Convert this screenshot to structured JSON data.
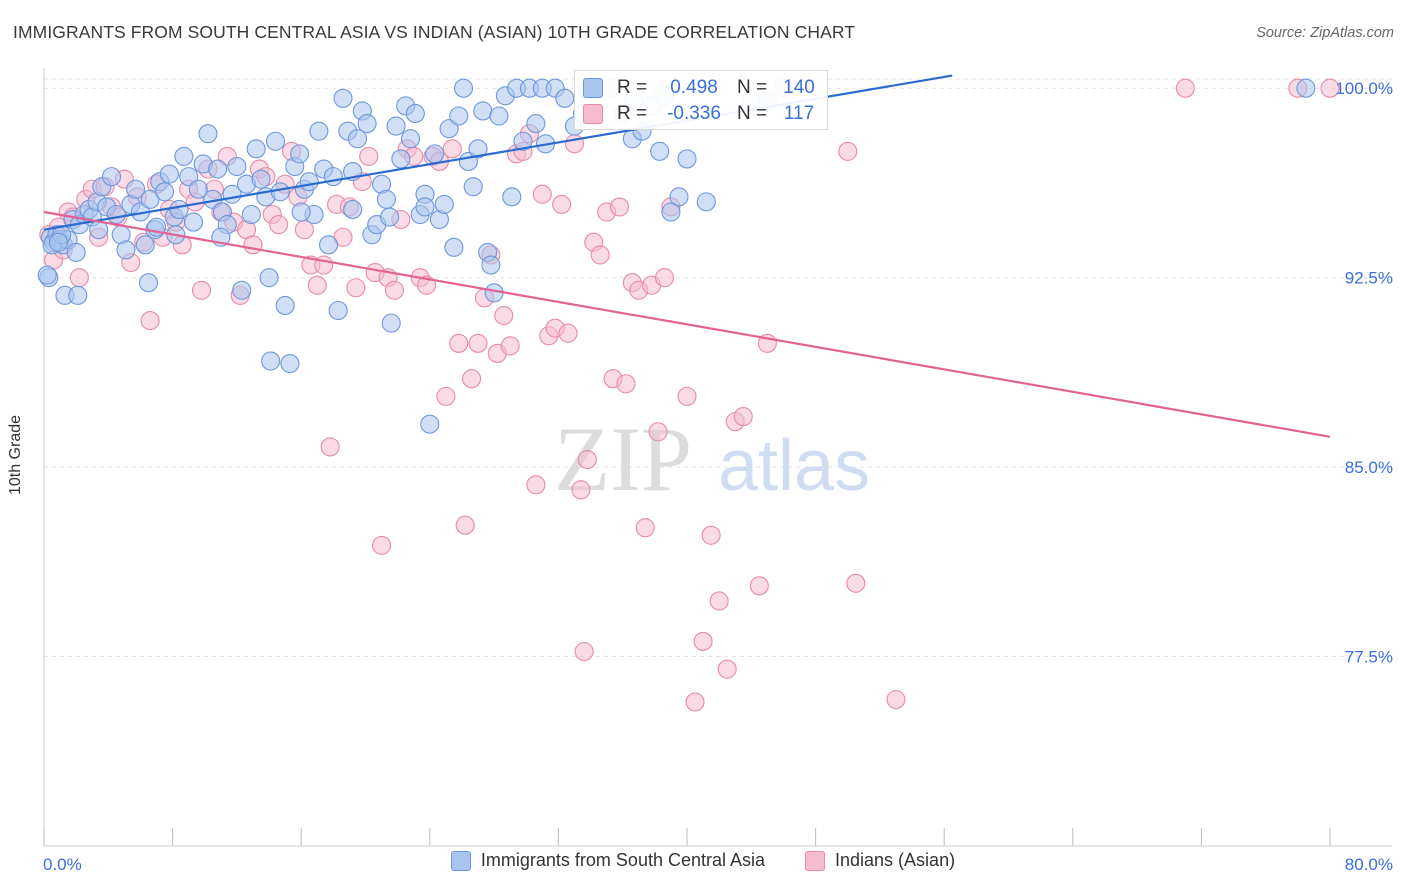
{
  "title": "IMMIGRANTS FROM SOUTH CENTRAL ASIA VS INDIAN (ASIAN) 10TH GRADE CORRELATION CHART",
  "source": "Source: ZipAtlas.com",
  "watermark": {
    "zip": "ZIP",
    "atlas": "atlas"
  },
  "colors": {
    "blue_fill": "#a9c4ee",
    "blue_stroke": "#6d97dc",
    "blue_line": "#2a6bd0",
    "pink_fill": "#f5bcd0",
    "pink_stroke": "#e78aaa",
    "pink_line": "#e26393",
    "axis_label": "#3a6fd8",
    "grid": "#e2e2e2"
  },
  "stats": {
    "series_a": {
      "r_label": "R =",
      "r_value": "0.498",
      "n_label": "N =",
      "n_value": "140"
    },
    "series_b": {
      "r_label": "R =",
      "r_value": "-0.336",
      "n_label": "N =",
      "n_value": "117"
    }
  },
  "chart_data": {
    "type": "scatter",
    "title": "IMMIGRANTS FROM SOUTH CENTRAL ASIA VS INDIAN (ASIAN) 10TH GRADE CORRELATION CHART",
    "xlabel": "",
    "ylabel": "10th Grade",
    "xlim": [
      0,
      80
    ],
    "ylim": [
      70,
      100.8
    ],
    "x_tick_labels": [
      "0.0%",
      "80.0%"
    ],
    "y_ticks": [
      100.0,
      92.5,
      85.0,
      77.5
    ],
    "y_tick_labels": [
      "100.0%",
      "92.5%",
      "85.0%",
      "77.5%"
    ],
    "grid": true,
    "legend_position": "bottom",
    "series": [
      {
        "name": "Immigrants from South Central Asia",
        "color": "#a9c4ee",
        "trend": {
          "x": [
            0,
            56.5
          ],
          "y": [
            94.4,
            100.5
          ]
        },
        "points": [
          [
            0.4,
            94.1
          ],
          [
            0.6,
            93.9
          ],
          [
            0.8,
            94.2
          ],
          [
            1.0,
            94.0
          ],
          [
            1.2,
            93.8
          ],
          [
            1.5,
            94.0
          ],
          [
            1.8,
            94.8
          ],
          [
            2.0,
            93.5
          ],
          [
            2.2,
            94.6
          ],
          [
            2.5,
            95.0
          ],
          [
            2.8,
            95.2
          ],
          [
            3.0,
            94.9
          ],
          [
            3.3,
            95.5
          ],
          [
            3.6,
            96.1
          ],
          [
            3.9,
            95.3
          ],
          [
            4.2,
            96.5
          ],
          [
            4.5,
            95.0
          ],
          [
            4.8,
            94.2
          ],
          [
            5.1,
            93.6
          ],
          [
            5.4,
            95.4
          ],
          [
            5.7,
            96.0
          ],
          [
            6.0,
            95.1
          ],
          [
            6.3,
            93.8
          ],
          [
            6.6,
            95.6
          ],
          [
            6.9,
            94.4
          ],
          [
            7.2,
            96.3
          ],
          [
            7.5,
            95.9
          ],
          [
            7.8,
            96.6
          ],
          [
            8.1,
            94.9
          ],
          [
            8.4,
            95.2
          ],
          [
            8.7,
            97.3
          ],
          [
            9.0,
            96.5
          ],
          [
            9.3,
            94.7
          ],
          [
            9.6,
            96.0
          ],
          [
            9.9,
            97.0
          ],
          [
            10.2,
            98.2
          ],
          [
            10.5,
            95.6
          ],
          [
            10.8,
            96.8
          ],
          [
            11.1,
            95.1
          ],
          [
            11.4,
            94.6
          ],
          [
            11.7,
            95.8
          ],
          [
            12.0,
            96.9
          ],
          [
            12.3,
            92.0
          ],
          [
            12.6,
            96.2
          ],
          [
            12.9,
            95.0
          ],
          [
            13.2,
            97.6
          ],
          [
            13.5,
            96.4
          ],
          [
            13.8,
            95.7
          ],
          [
            14.1,
            89.2
          ],
          [
            14.4,
            97.9
          ],
          [
            14.7,
            95.9
          ],
          [
            15.0,
            91.4
          ],
          [
            15.3,
            89.1
          ],
          [
            15.6,
            96.9
          ],
          [
            15.9,
            97.4
          ],
          [
            16.2,
            96.0
          ],
          [
            16.5,
            96.3
          ],
          [
            16.8,
            95.0
          ],
          [
            17.1,
            98.3
          ],
          [
            17.4,
            96.8
          ],
          [
            17.7,
            93.8
          ],
          [
            18.0,
            96.5
          ],
          [
            18.3,
            91.2
          ],
          [
            18.6,
            99.6
          ],
          [
            18.9,
            98.3
          ],
          [
            19.2,
            96.7
          ],
          [
            19.5,
            98.0
          ],
          [
            19.8,
            99.1
          ],
          [
            20.1,
            98.6
          ],
          [
            20.4,
            94.2
          ],
          [
            20.7,
            94.6
          ],
          [
            21.0,
            96.2
          ],
          [
            21.3,
            95.6
          ],
          [
            21.6,
            90.7
          ],
          [
            21.9,
            98.5
          ],
          [
            22.2,
            97.2
          ],
          [
            22.5,
            99.3
          ],
          [
            22.8,
            98.0
          ],
          [
            23.1,
            99.0
          ],
          [
            23.4,
            95.0
          ],
          [
            23.7,
            95.8
          ],
          [
            24.0,
            86.7
          ],
          [
            24.3,
            97.4
          ],
          [
            24.6,
            94.8
          ],
          [
            24.9,
            95.4
          ],
          [
            25.2,
            98.4
          ],
          [
            25.5,
            93.7
          ],
          [
            25.8,
            98.9
          ],
          [
            26.1,
            100.0
          ],
          [
            26.4,
            97.1
          ],
          [
            26.7,
            96.1
          ],
          [
            27.0,
            97.6
          ],
          [
            27.3,
            99.1
          ],
          [
            27.6,
            93.5
          ],
          [
            28.0,
            91.9
          ],
          [
            28.3,
            98.9
          ],
          [
            28.7,
            99.7
          ],
          [
            29.1,
            95.7
          ],
          [
            29.4,
            100.0
          ],
          [
            29.8,
            97.9
          ],
          [
            30.2,
            100.0
          ],
          [
            30.6,
            98.6
          ],
          [
            31.0,
            100.0
          ],
          [
            31.8,
            100.0
          ],
          [
            32.4,
            99.6
          ],
          [
            33.0,
            98.5
          ],
          [
            33.8,
            99.9
          ],
          [
            34.5,
            100.0
          ],
          [
            35.2,
            100.0
          ],
          [
            36.0,
            99.0
          ],
          [
            36.6,
            98.0
          ],
          [
            37.2,
            98.3
          ],
          [
            37.8,
            99.3
          ],
          [
            38.3,
            97.5
          ],
          [
            39.0,
            95.1
          ],
          [
            39.5,
            95.7
          ],
          [
            40.0,
            97.2
          ],
          [
            41.2,
            95.5
          ],
          [
            44.0,
            99.5
          ],
          [
            45.0,
            99.5
          ],
          [
            78.5,
            100.0
          ],
          [
            0.3,
            92.5
          ],
          [
            0.5,
            93.8
          ],
          [
            1.1,
            94.2
          ],
          [
            1.3,
            91.8
          ],
          [
            2.1,
            91.8
          ],
          [
            0.2,
            92.6
          ],
          [
            0.9,
            93.9
          ],
          [
            3.4,
            94.4
          ],
          [
            6.5,
            92.3
          ],
          [
            7.0,
            94.5
          ],
          [
            8.2,
            94.2
          ],
          [
            11.0,
            94.1
          ],
          [
            14.0,
            92.5
          ],
          [
            16.0,
            95.1
          ],
          [
            19.2,
            95.2
          ],
          [
            21.5,
            94.9
          ],
          [
            23.7,
            95.3
          ],
          [
            27.8,
            93.0
          ],
          [
            31.2,
            97.8
          ],
          [
            33.5,
            99.0
          ],
          [
            36.7,
            99.5
          ],
          [
            38.6,
            99.7
          ]
        ]
      },
      {
        "name": "Indians (Asian)",
        "color": "#f5bcd0",
        "trend": {
          "x": [
            0,
            80
          ],
          "y": [
            95.1,
            86.2
          ]
        },
        "points": [
          [
            0.3,
            94.2
          ],
          [
            0.6,
            93.2
          ],
          [
            0.9,
            94.5
          ],
          [
            1.2,
            93.6
          ],
          [
            1.5,
            95.1
          ],
          [
            1.8,
            94.9
          ],
          [
            2.2,
            92.5
          ],
          [
            2.6,
            95.6
          ],
          [
            3.0,
            96.0
          ],
          [
            3.4,
            94.1
          ],
          [
            3.8,
            96.1
          ],
          [
            4.2,
            95.3
          ],
          [
            4.6,
            94.9
          ],
          [
            5.0,
            96.4
          ],
          [
            5.4,
            93.1
          ],
          [
            5.8,
            95.7
          ],
          [
            6.2,
            93.9
          ],
          [
            6.6,
            90.8
          ],
          [
            7.0,
            96.2
          ],
          [
            7.4,
            94.1
          ],
          [
            7.8,
            95.2
          ],
          [
            8.2,
            94.7
          ],
          [
            8.6,
            93.8
          ],
          [
            9.0,
            96.0
          ],
          [
            9.4,
            95.5
          ],
          [
            9.8,
            92.0
          ],
          [
            10.2,
            96.8
          ],
          [
            10.6,
            96.0
          ],
          [
            11.0,
            95.1
          ],
          [
            11.4,
            97.3
          ],
          [
            11.8,
            94.7
          ],
          [
            12.2,
            91.8
          ],
          [
            12.6,
            94.4
          ],
          [
            13.0,
            93.8
          ],
          [
            13.4,
            96.8
          ],
          [
            13.8,
            96.5
          ],
          [
            14.2,
            95.0
          ],
          [
            14.6,
            94.6
          ],
          [
            15.0,
            96.2
          ],
          [
            15.4,
            97.5
          ],
          [
            15.8,
            95.7
          ],
          [
            16.2,
            94.4
          ],
          [
            16.6,
            93.0
          ],
          [
            17.0,
            92.2
          ],
          [
            17.4,
            93.0
          ],
          [
            17.8,
            85.8
          ],
          [
            18.2,
            95.4
          ],
          [
            18.6,
            94.1
          ],
          [
            19.0,
            95.3
          ],
          [
            19.4,
            92.1
          ],
          [
            19.8,
            96.3
          ],
          [
            20.2,
            97.3
          ],
          [
            20.6,
            92.7
          ],
          [
            21.0,
            81.9
          ],
          [
            21.4,
            92.5
          ],
          [
            21.8,
            92.0
          ],
          [
            22.2,
            94.8
          ],
          [
            22.6,
            97.6
          ],
          [
            23.0,
            97.3
          ],
          [
            23.4,
            92.5
          ],
          [
            23.8,
            92.2
          ],
          [
            24.2,
            97.3
          ],
          [
            24.6,
            97.1
          ],
          [
            25.0,
            87.8
          ],
          [
            25.4,
            97.6
          ],
          [
            25.8,
            89.9
          ],
          [
            26.2,
            82.7
          ],
          [
            26.6,
            88.5
          ],
          [
            27.0,
            89.9
          ],
          [
            27.4,
            91.7
          ],
          [
            27.8,
            93.4
          ],
          [
            28.2,
            89.5
          ],
          [
            28.6,
            91.0
          ],
          [
            29.0,
            89.8
          ],
          [
            29.4,
            97.4
          ],
          [
            29.8,
            97.5
          ],
          [
            30.2,
            98.2
          ],
          [
            30.6,
            84.3
          ],
          [
            31.0,
            95.8
          ],
          [
            31.4,
            90.2
          ],
          [
            31.8,
            90.5
          ],
          [
            32.2,
            95.4
          ],
          [
            32.6,
            90.3
          ],
          [
            33.0,
            97.8
          ],
          [
            33.4,
            84.1
          ],
          [
            33.8,
            85.3
          ],
          [
            34.2,
            93.9
          ],
          [
            34.6,
            93.4
          ],
          [
            35.0,
            95.1
          ],
          [
            35.4,
            88.5
          ],
          [
            35.8,
            95.3
          ],
          [
            36.2,
            88.3
          ],
          [
            36.6,
            92.3
          ],
          [
            37.0,
            92.0
          ],
          [
            37.4,
            82.6
          ],
          [
            37.8,
            92.2
          ],
          [
            38.2,
            86.4
          ],
          [
            38.6,
            92.5
          ],
          [
            39.0,
            95.3
          ],
          [
            40.0,
            87.8
          ],
          [
            40.5,
            75.7
          ],
          [
            41.0,
            78.1
          ],
          [
            41.5,
            82.3
          ],
          [
            42.0,
            79.7
          ],
          [
            42.5,
            77.0
          ],
          [
            43.0,
            86.8
          ],
          [
            43.5,
            87.0
          ],
          [
            44.5,
            80.3
          ],
          [
            45.0,
            89.9
          ],
          [
            50.0,
            97.5
          ],
          [
            50.5,
            80.4
          ],
          [
            53.0,
            75.8
          ],
          [
            33.6,
            77.7
          ],
          [
            71.0,
            100.0
          ],
          [
            78.0,
            100.0
          ],
          [
            80.0,
            100.0
          ],
          [
            46.0,
            100.0
          ]
        ]
      }
    ]
  }
}
